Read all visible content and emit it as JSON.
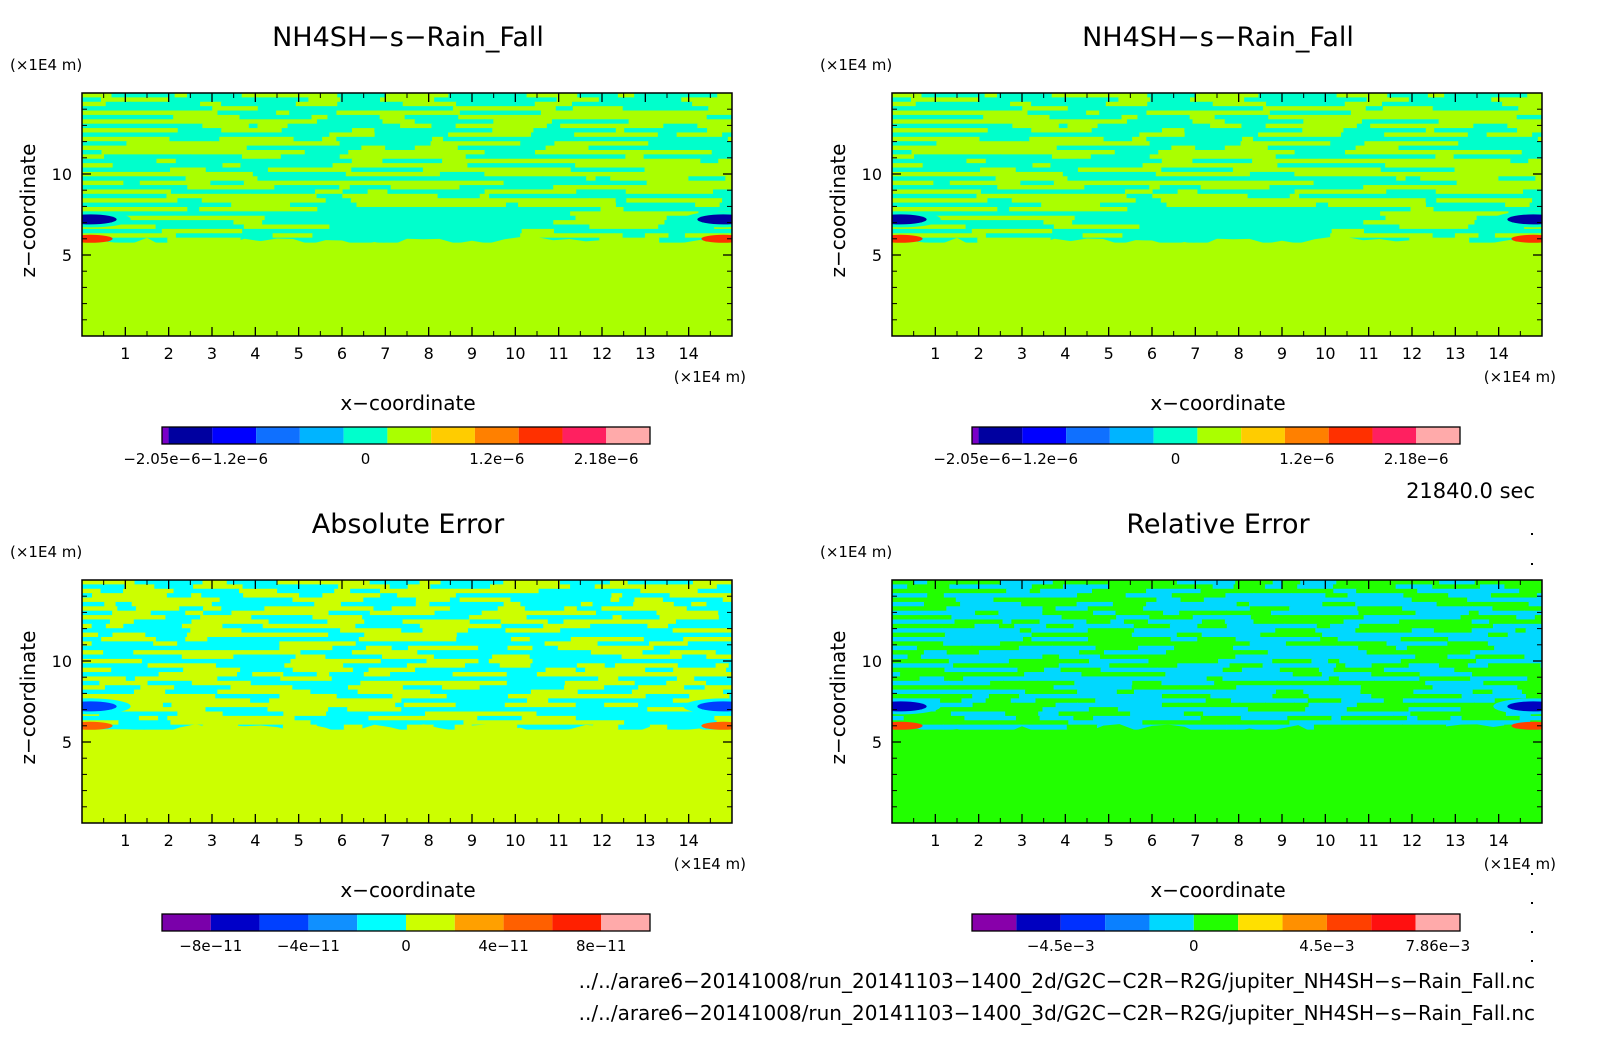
{
  "chart_data": [
    {
      "type": "heatmap",
      "panel": "top-left",
      "title": "NH4SH−s−Rain_Fall",
      "xlabel": "x−coordinate",
      "ylabel": "z−coordinate",
      "x_unit": "(×1E4 m)",
      "y_unit": "(×1E4 m)",
      "x_ticks": [
        "1",
        "2",
        "3",
        "4",
        "5",
        "6",
        "7",
        "8",
        "9",
        "10",
        "11",
        "12",
        "13",
        "14"
      ],
      "y_ticks": [
        "5",
        "10"
      ],
      "xlim": [
        0,
        15
      ],
      "ylim": [
        0,
        15
      ],
      "colorbar": {
        "colors": [
          "#7a00c8",
          "#0000a0",
          "#0000ff",
          "#0f70ff",
          "#00b4ff",
          "#00ffcc",
          "#aaff00",
          "#ffcc00",
          "#ff8000",
          "#ff3000",
          "#ff2060",
          "#ffaaaa"
        ],
        "ticks": [
          "−2.05e−6",
          "−1.2e−6",
          "0",
          "1.2e−6",
          "2.18e−6"
        ],
        "tick_positions": [
          0,
          2,
          5,
          8,
          10.5
        ]
      },
      "field": {
        "lower_value_color": "#aaff00",
        "band_colors": [
          "#aaff00",
          "#00ffcc"
        ],
        "anomaly_min_color": "#0000a0",
        "anomaly_max_color": "#ff3000"
      }
    },
    {
      "type": "heatmap",
      "panel": "top-right",
      "title": "NH4SH−s−Rain_Fall",
      "xlabel": "x−coordinate",
      "ylabel": "z−coordinate",
      "x_unit": "(×1E4 m)",
      "y_unit": "(×1E4 m)",
      "x_ticks": [
        "1",
        "2",
        "3",
        "4",
        "5",
        "6",
        "7",
        "8",
        "9",
        "10",
        "11",
        "12",
        "13",
        "14"
      ],
      "y_ticks": [
        "5",
        "10"
      ],
      "xlim": [
        0,
        15
      ],
      "ylim": [
        0,
        15
      ],
      "colorbar": {
        "colors": [
          "#7a00c8",
          "#0000a0",
          "#0000ff",
          "#0f70ff",
          "#00b4ff",
          "#00ffcc",
          "#aaff00",
          "#ffcc00",
          "#ff8000",
          "#ff3000",
          "#ff2060",
          "#ffaaaa"
        ],
        "ticks": [
          "−2.05e−6",
          "−1.2e−6",
          "0",
          "1.2e−6",
          "2.18e−6"
        ],
        "tick_positions": [
          0,
          2,
          5,
          8,
          10.5
        ]
      },
      "field": {
        "lower_value_color": "#aaff00",
        "band_colors": [
          "#aaff00",
          "#00ffcc"
        ],
        "anomaly_min_color": "#0000a0",
        "anomaly_max_color": "#ff3000"
      }
    },
    {
      "type": "heatmap",
      "panel": "bottom-left",
      "title": "Absolute Error",
      "xlabel": "x−coordinate",
      "ylabel": "z−coordinate",
      "x_unit": "(×1E4 m)",
      "y_unit": "(×1E4 m)",
      "x_ticks": [
        "1",
        "2",
        "3",
        "4",
        "5",
        "6",
        "7",
        "8",
        "9",
        "10",
        "11",
        "12",
        "13",
        "14"
      ],
      "y_ticks": [
        "5",
        "10"
      ],
      "xlim": [
        0,
        15
      ],
      "ylim": [
        0,
        15
      ],
      "colorbar": {
        "colors": [
          "#7a00aa",
          "#0000c8",
          "#0040ff",
          "#1090ff",
          "#00ffff",
          "#ccff00",
          "#ffa000",
          "#ff6000",
          "#ff2000",
          "#ffaaaa"
        ],
        "ticks": [
          "−8e−11",
          "−4e−11",
          "0",
          "4e−11",
          "8e−11"
        ],
        "tick_positions": [
          1,
          3,
          5,
          7,
          9
        ]
      },
      "field": {
        "lower_value_color": "#ccff00",
        "band_colors": [
          "#ccff00",
          "#00ffff"
        ],
        "anomaly_min_color": "#0040ff",
        "anomaly_max_color": "#ff6000"
      }
    },
    {
      "type": "heatmap",
      "panel": "bottom-right",
      "title": "Relative Error",
      "xlabel": "x−coordinate",
      "ylabel": "z−coordinate",
      "x_unit": "(×1E4 m)",
      "y_unit": "(×1E4 m)",
      "x_ticks": [
        "1",
        "2",
        "3",
        "4",
        "5",
        "6",
        "7",
        "8",
        "9",
        "10",
        "11",
        "12",
        "13",
        "14"
      ],
      "y_ticks": [
        "5",
        "10"
      ],
      "xlim": [
        0,
        15
      ],
      "ylim": [
        0,
        15
      ],
      "colorbar": {
        "colors": [
          "#8800aa",
          "#0000c0",
          "#0030ff",
          "#0a80ff",
          "#00d8ff",
          "#22ff00",
          "#ffe000",
          "#ff9000",
          "#ff4000",
          "#ff1010",
          "#ffaaaa"
        ],
        "ticks": [
          "−4.5e−3",
          "0",
          "4.5e−3",
          "7.86e−3"
        ],
        "tick_positions": [
          2,
          5,
          8,
          10.5
        ]
      },
      "field": {
        "lower_value_color": "#22ff00",
        "band_colors": [
          "#22ff00",
          "#00d8ff"
        ],
        "anomaly_min_color": "#0000c0",
        "anomaly_max_color": "#ff4000"
      }
    }
  ],
  "time_label": "21840.0 sec",
  "footer": {
    "file_2d": "../../arare6−20141008/run_20141103−1400_2d/G2C−C2R−R2G/jupiter_NH4SH−s−Rain_Fall.nc",
    "file_3d": "../../arare6−20141008/run_20141103−1400_3d/G2C−C2R−R2G/jupiter_NH4SH−s−Rain_Fall.nc"
  }
}
